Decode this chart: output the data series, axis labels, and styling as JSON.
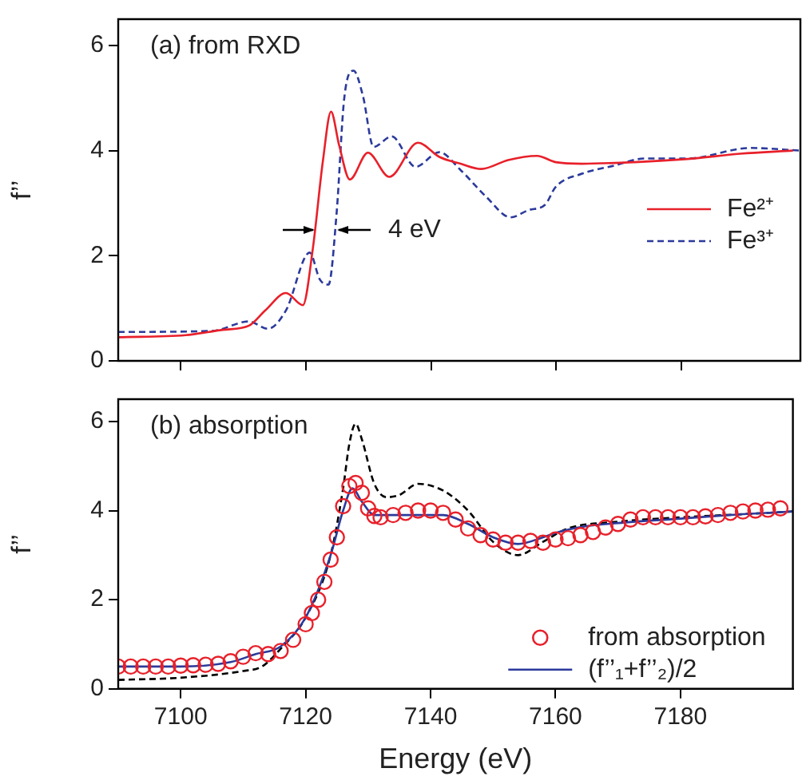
{
  "chart_data": [
    {
      "type": "line",
      "title": "(a) from RXD",
      "ylabel": "f’’",
      "xlim": [
        7090,
        7199
      ],
      "xticks": [
        7100,
        7120,
        7140,
        7160,
        7180
      ],
      "ylim": [
        0,
        6.5
      ],
      "yticks": [
        0,
        2,
        4,
        6
      ],
      "tick_labels": "y",
      "grid": false,
      "legend": "right",
      "marker": "none",
      "annotations": [
        "4 eV"
      ],
      "series": [
        {
          "name": "Fe²⁺",
          "color": "#e8202a",
          "line_style": "solid",
          "x": [
            7090,
            7100.8,
            7106.7,
            7110.9,
            7113.5,
            7116.8,
            7119.5,
            7121.1,
            7122.7,
            7124,
            7125.3,
            7127,
            7129.9,
            7133.3,
            7137.9,
            7141.3,
            7144.7,
            7148,
            7152.3,
            7156.9,
            7159.9,
            7164.1,
            7172.5,
            7181,
            7189.4,
            7197.8
          ],
          "values": [
            0.45,
            0.49,
            0.59,
            0.67,
            0.96,
            1.29,
            1.06,
            2.14,
            3.8,
            4.74,
            4.1,
            3.45,
            3.96,
            3.5,
            4.15,
            3.88,
            3.75,
            3.65,
            3.82,
            3.9,
            3.78,
            3.75,
            3.78,
            3.84,
            3.94,
            4.0
          ]
        },
        {
          "name": "Fe³⁺",
          "color": "#2b3a9b",
          "line_style": "dashed",
          "x": [
            7090,
            7105,
            7110.9,
            7113.9,
            7116.8,
            7120.6,
            7122.2,
            7123.6,
            7124.9,
            7126.1,
            7127.6,
            7129.1,
            7130.8,
            7133.7,
            7137.5,
            7141.3,
            7144.7,
            7148.8,
            7152.7,
            7155.6,
            7158.2,
            7159.9,
            7164.1,
            7169.1,
            7174.2,
            7181,
            7191,
            7199
          ],
          "values": [
            0.55,
            0.57,
            0.75,
            0.61,
            0.96,
            2.06,
            1.55,
            1.45,
            2.82,
            4.98,
            5.52,
            5.04,
            4.07,
            4.27,
            3.69,
            3.97,
            3.63,
            3.12,
            2.73,
            2.87,
            2.97,
            3.31,
            3.56,
            3.71,
            3.85,
            3.85,
            4.05,
            4.0
          ]
        }
      ]
    },
    {
      "type": "line",
      "title": "(b) absorption",
      "xlabel": "Energy (eV)",
      "ylabel": "f’’",
      "xlim": [
        7090,
        7198
      ],
      "xticks": [
        7100,
        7120,
        7140,
        7160,
        7180
      ],
      "ylim": [
        0,
        6.5
      ],
      "yticks": [
        0,
        2,
        4,
        6
      ],
      "grid": false,
      "legend": "bottom right",
      "series": [
        {
          "name": "from absorption",
          "type": "scatter",
          "marker": "circle",
          "color": "#e8202a",
          "x": [
            7090,
            7092,
            7094,
            7096,
            7098,
            7100,
            7102,
            7104,
            7106,
            7108,
            7110,
            7112,
            7114,
            7116,
            7118,
            7120,
            7121,
            7122,
            7123,
            7124,
            7125,
            7126,
            7127,
            7128,
            7129,
            7130,
            7131,
            7132,
            7134,
            7136,
            7138,
            7140,
            7142,
            7144,
            7146,
            7148,
            7150,
            7152,
            7154,
            7156,
            7158,
            7160,
            7162,
            7164,
            7166,
            7168,
            7170,
            7172,
            7174,
            7176,
            7178,
            7180,
            7182,
            7184,
            7186,
            7188,
            7190,
            7192,
            7194,
            7196
          ],
          "values": [
            0.5,
            0.5,
            0.5,
            0.5,
            0.5,
            0.52,
            0.53,
            0.54,
            0.56,
            0.62,
            0.72,
            0.8,
            0.78,
            0.85,
            1.1,
            1.45,
            1.7,
            2.0,
            2.4,
            2.9,
            3.4,
            4.1,
            4.55,
            4.62,
            4.4,
            4.05,
            3.88,
            3.85,
            3.9,
            3.95,
            4.0,
            4.0,
            3.95,
            3.8,
            3.6,
            3.45,
            3.35,
            3.28,
            3.28,
            3.32,
            3.28,
            3.35,
            3.38,
            3.45,
            3.52,
            3.62,
            3.7,
            3.8,
            3.85,
            3.85,
            3.85,
            3.85,
            3.85,
            3.87,
            3.9,
            3.95,
            3.98,
            4.0,
            4.02,
            4.05
          ]
        },
        {
          "name": "(f’’₁+f’’₂)/2",
          "color": "#2b3a9b",
          "line_style": "solid",
          "marker": "none",
          "x": [
            7090,
            7100,
            7108,
            7112,
            7116,
            7120,
            7124,
            7126,
            7127.5,
            7129,
            7131,
            7135,
            7142,
            7146,
            7150,
            7154,
            7158,
            7160,
            7165,
            7170,
            7180,
            7190,
            7198
          ],
          "values": [
            0.5,
            0.5,
            0.6,
            0.78,
            0.95,
            1.6,
            3.0,
            4.0,
            4.5,
            4.2,
            3.9,
            3.9,
            3.9,
            3.7,
            3.4,
            3.25,
            3.4,
            3.5,
            3.65,
            3.72,
            3.82,
            3.92,
            3.98
          ]
        },
        {
          "color": "#000000",
          "line_style": "dashed",
          "marker": "none",
          "x": [
            7090,
            7100,
            7110,
            7113,
            7116,
            7120,
            7124,
            7126,
            7127,
            7128,
            7129,
            7131,
            7133,
            7135,
            7138,
            7142,
            7146,
            7150,
            7154,
            7158,
            7162,
            7170,
            7180,
            7190,
            7198
          ],
          "values": [
            0.2,
            0.25,
            0.4,
            0.5,
            0.9,
            1.6,
            3.0,
            4.5,
            5.5,
            5.95,
            5.6,
            4.6,
            4.3,
            4.35,
            4.6,
            4.45,
            4.0,
            3.3,
            3.0,
            3.3,
            3.6,
            3.75,
            3.85,
            3.92,
            3.98
          ]
        }
      ]
    }
  ]
}
